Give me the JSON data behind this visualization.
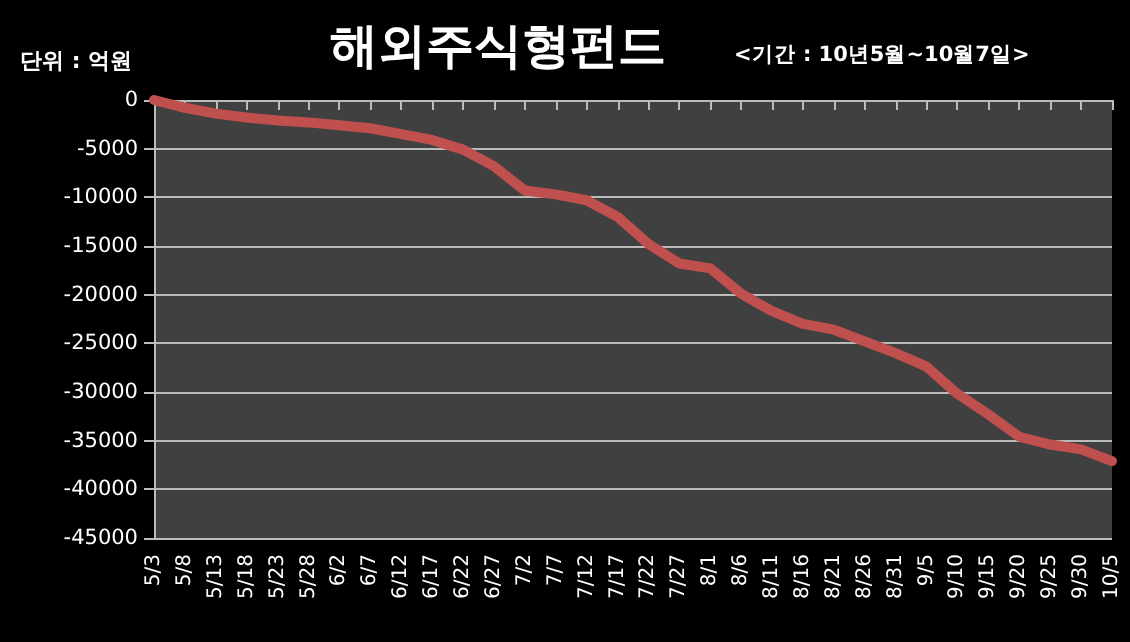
{
  "chart_data": {
    "type": "line",
    "title": "해외주식형펀드",
    "subtitle": "<기간 : 10년5월~10월7일>",
    "ylabel": "단위 : 억원",
    "categories": [
      "5/3",
      "5/8",
      "5/13",
      "5/18",
      "5/23",
      "5/28",
      "6/2",
      "6/7",
      "6/12",
      "6/17",
      "6/22",
      "6/27",
      "7/2",
      "7/7",
      "7/12",
      "7/17",
      "7/22",
      "7/27",
      "8/1",
      "8/6",
      "8/11",
      "8/16",
      "8/21",
      "8/26",
      "8/31",
      "9/5",
      "9/10",
      "9/15",
      "9/20",
      "9/25",
      "9/30",
      "10/5"
    ],
    "series": [
      {
        "color": "#c0504d",
        "values": [
          0,
          -800,
          -1400,
          -1800,
          -2100,
          -2300,
          -2600,
          -2900,
          -3500,
          -4100,
          -5100,
          -6800,
          -9300,
          -9700,
          -10300,
          -12000,
          -14800,
          -16800,
          -17300,
          -19900,
          -21700,
          -23000,
          -23600,
          -24800,
          -26000,
          -27400,
          -30200,
          -32300,
          -34600,
          -35400,
          -35900,
          -37100
        ]
      }
    ],
    "ylim": [
      -45000,
      0
    ],
    "yticks": [
      0,
      -5000,
      -10000,
      -15000,
      -20000,
      -25000,
      -30000,
      -35000,
      -40000,
      -45000
    ],
    "grid": "y",
    "marker": "none",
    "line_style": "solid"
  }
}
